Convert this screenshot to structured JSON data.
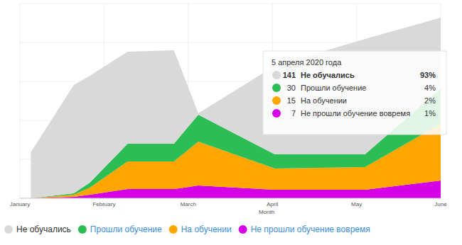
{
  "chart_data": {
    "type": "area",
    "stacked": true,
    "x_label": "Month",
    "x": [
      1.13,
      1.64,
      1.83,
      2.28,
      2.83,
      3.12,
      4.03,
      5.1,
      6.0
    ],
    "xlim": [
      1,
      6
    ],
    "xticks": [
      {
        "value": 1,
        "label": "January"
      },
      {
        "value": 2,
        "label": "February"
      },
      {
        "value": 3,
        "label": "March"
      },
      {
        "value": 4,
        "label": "April"
      },
      {
        "value": 5,
        "label": "May"
      },
      {
        "value": 6,
        "label": "June"
      }
    ],
    "ylim": [
      0,
      275
    ],
    "yticks": [
      0,
      55,
      110,
      165,
      220,
      275
    ],
    "grid": true,
    "tick_labels": "x",
    "legend": "bottom",
    "series": [
      {
        "name": "Не обучались",
        "color": "#d9d9d9",
        "values": [
          65,
          153,
          151,
          130,
          132,
          2,
          125,
          163,
          100
        ]
      },
      {
        "name": "Прошли обучение",
        "color": "#2dbd55",
        "values": [
          0,
          2,
          7,
          25,
          25,
          38,
          20,
          18,
          50
        ]
      },
      {
        "name": "На обучении",
        "color": "#ffa500",
        "values": [
          0,
          3,
          10,
          39,
          39,
          62,
          30,
          32,
          80
        ]
      },
      {
        "name": "Не прошли обучение вовремя",
        "color": "#d400e6",
        "values": [
          0,
          2,
          5,
          13,
          13,
          18,
          12,
          12,
          25
        ]
      }
    ],
    "tooltip": {
      "title": "5 апреля 2020 года",
      "rows": [
        {
          "value": 141,
          "label": "Не обучались",
          "share": "93%"
        },
        {
          "value": 30,
          "label": "Прошли обучение",
          "share": "4%"
        },
        {
          "value": 15,
          "label": "На обучении",
          "share": "2%"
        },
        {
          "value": 7,
          "label": "Не прошли обучение вовремя",
          "share": "1%"
        }
      ]
    }
  }
}
